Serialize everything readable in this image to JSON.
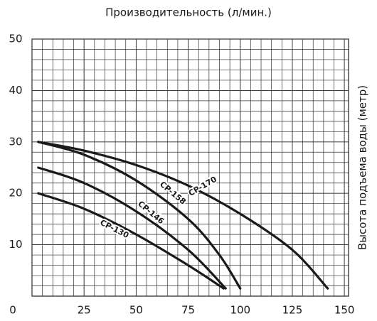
{
  "chart_data": {
    "type": "line",
    "title": "Производительность (л/мин.)",
    "y_label": "Высота подъема воды (метр)",
    "xlim": [
      0,
      152
    ],
    "ylim": [
      0,
      50
    ],
    "xticks": [
      0,
      25,
      50,
      75,
      100,
      125,
      150
    ],
    "yticks": [
      10,
      20,
      30,
      40,
      50
    ],
    "grid": true,
    "series": [
      {
        "name": "CP-170",
        "color": "#1a1a1a",
        "x": [
          3,
          25,
          50,
          75,
          100,
          125,
          142
        ],
        "values": [
          30,
          28.3,
          25.5,
          21.5,
          16,
          9,
          1.5
        ]
      },
      {
        "name": "CP-158",
        "color": "#1a1a1a",
        "x": [
          3,
          25,
          50,
          75,
          90,
          100
        ],
        "values": [
          30,
          27.5,
          22.5,
          15,
          8,
          1.5
        ]
      },
      {
        "name": "CP-146",
        "color": "#1a1a1a",
        "x": [
          3,
          25,
          50,
          75,
          93
        ],
        "values": [
          25,
          22,
          16.5,
          9,
          1.5
        ]
      },
      {
        "name": "CP-130",
        "color": "#1a1a1a",
        "x": [
          3,
          25,
          50,
          75,
          92
        ],
        "values": [
          20,
          17,
          12,
          6,
          1.5
        ]
      }
    ]
  }
}
